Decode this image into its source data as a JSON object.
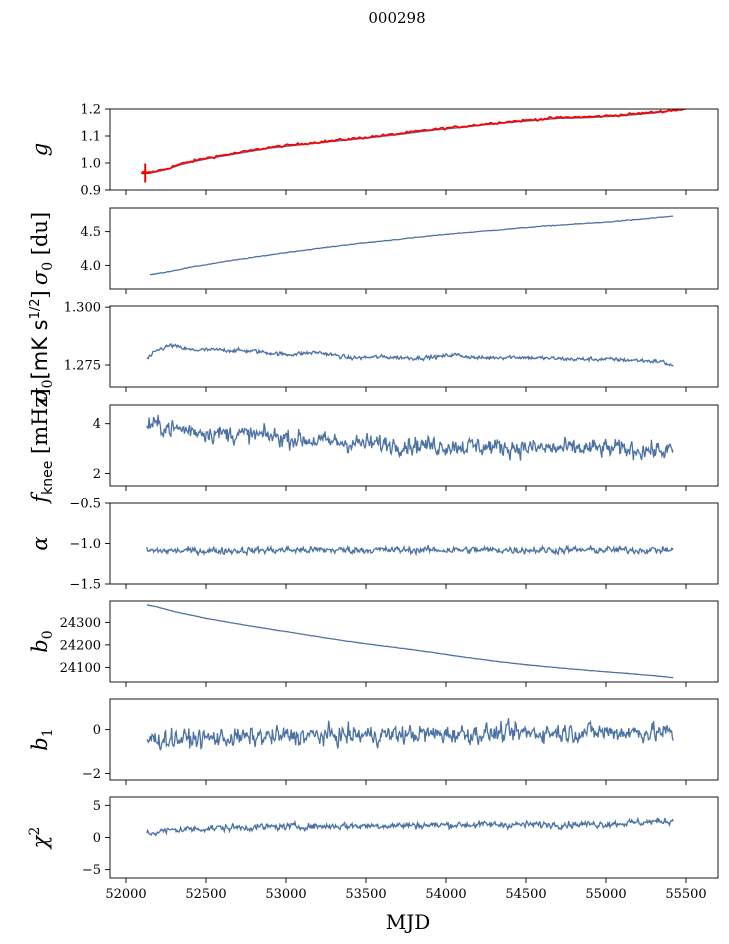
{
  "figure": {
    "title": "000298",
    "xlabel": "MJD"
  },
  "chart_data": [
    {
      "type": "line",
      "ylabel": "$g$",
      "ylim": [
        0.9,
        1.2
      ],
      "yticks": [
        "0.9",
        "1.0",
        "1.1",
        "1.2"
      ],
      "ytick_values": [
        0.9,
        1.0,
        1.1,
        1.2
      ],
      "xlim": [
        51900,
        55700
      ],
      "xticks": [
        "52000",
        "52500",
        "53000",
        "53500",
        "54000",
        "54500",
        "55000",
        "55500"
      ],
      "xtick_values": [
        52000,
        52500,
        53000,
        53500,
        54000,
        54500,
        55000,
        55500
      ],
      "show_xticklabels": false,
      "series": [
        {
          "color": "#4c72a4",
          "kind": "smooth",
          "noise": 0.0,
          "x": [
            52100,
            52150,
            52250,
            52350,
            52500,
            52700,
            52900,
            53100,
            53300,
            53500,
            53700,
            53900,
            54100,
            54300,
            54500,
            54700,
            54900,
            55100,
            55300,
            55450
          ],
          "y": [
            0.96,
            0.962,
            0.975,
            0.995,
            1.015,
            1.035,
            1.055,
            1.068,
            1.08,
            1.092,
            1.105,
            1.12,
            1.132,
            1.145,
            1.155,
            1.165,
            1.168,
            1.175,
            1.185,
            1.198
          ]
        },
        {
          "color": "#ff0000",
          "kind": "smooth",
          "noise": 0.003,
          "x": [
            52100,
            52150,
            52250,
            52350,
            52500,
            52700,
            52900,
            53100,
            53300,
            53500,
            53700,
            53900,
            54100,
            54300,
            54500,
            54700,
            54900,
            55100,
            55300,
            55500
          ],
          "y": [
            0.965,
            0.965,
            0.978,
            0.998,
            1.018,
            1.038,
            1.058,
            1.071,
            1.083,
            1.095,
            1.108,
            1.123,
            1.135,
            1.148,
            1.158,
            1.168,
            1.171,
            1.178,
            1.188,
            1.2
          ]
        },
        {
          "color": "#ff0000",
          "kind": "errorbar",
          "x": [
            52120
          ],
          "y": [
            0.963
          ],
          "err": [
            0.035
          ]
        }
      ]
    },
    {
      "type": "line",
      "ylabel": "$\\sigma_0$ [du]",
      "ylim": [
        3.65,
        4.85
      ],
      "yticks": [
        "4.0",
        "4.5"
      ],
      "ytick_values": [
        4.0,
        4.5
      ],
      "xlim": [
        51900,
        55700
      ],
      "xtick_values": [
        52000,
        52500,
        53000,
        53500,
        54000,
        54500,
        55000,
        55500
      ],
      "show_xticklabels": false,
      "series": [
        {
          "color": "#4c72a4",
          "kind": "smooth",
          "noise": 0.004,
          "x": [
            52150,
            52250,
            52400,
            52600,
            52800,
            53000,
            53200,
            53400,
            53600,
            53800,
            54000,
            54200,
            54400,
            54600,
            54800,
            55000,
            55200,
            55420
          ],
          "y": [
            3.86,
            3.9,
            3.97,
            4.05,
            4.12,
            4.19,
            4.25,
            4.31,
            4.36,
            4.41,
            4.46,
            4.5,
            4.54,
            4.58,
            4.61,
            4.64,
            4.68,
            4.73
          ]
        }
      ]
    },
    {
      "type": "line",
      "ylabel": "$\\sigma_0$[mK s$^{1/2}$]",
      "ylim": [
        1.2655,
        1.3005
      ],
      "yticks": [
        "1.275",
        "1.300"
      ],
      "ytick_values": [
        1.275,
        1.3
      ],
      "xlim": [
        51900,
        55700
      ],
      "xtick_values": [
        52000,
        52500,
        53000,
        53500,
        54000,
        54500,
        55000,
        55500
      ],
      "show_xticklabels": false,
      "series": [
        {
          "color": "#4c72a4",
          "kind": "noisy",
          "noise": 0.0009,
          "x": [
            52130,
            52200,
            52280,
            52400,
            52600,
            52800,
            53000,
            53200,
            53400,
            53600,
            53800,
            53950,
            54050,
            54200,
            54400,
            54600,
            54800,
            55000,
            55200,
            55350,
            55420
          ],
          "y": [
            1.2775,
            1.2815,
            1.2835,
            1.2815,
            1.2815,
            1.281,
            1.2795,
            1.2805,
            1.278,
            1.2785,
            1.278,
            1.2785,
            1.2795,
            1.278,
            1.2785,
            1.278,
            1.2775,
            1.2775,
            1.277,
            1.2765,
            1.2745
          ]
        }
      ]
    },
    {
      "type": "line",
      "ylabel": "$f_{\\mathrm{knee}}$ [mHz]",
      "ylim": [
        1.5,
        4.75
      ],
      "yticks": [
        "2",
        "4"
      ],
      "ytick_values": [
        2,
        4
      ],
      "xlim": [
        51900,
        55700
      ],
      "xtick_values": [
        52000,
        52500,
        53000,
        53500,
        54000,
        54500,
        55000,
        55500
      ],
      "show_xticklabels": false,
      "series": [
        {
          "color": "#4c72a4",
          "kind": "noisy",
          "noise": 0.38,
          "x": [
            52130,
            52300,
            52600,
            52900,
            53200,
            53500,
            53800,
            54100,
            54400,
            54700,
            55000,
            55420
          ],
          "y": [
            4.0,
            3.8,
            3.6,
            3.5,
            3.3,
            3.2,
            3.15,
            3.1,
            3.05,
            3.0,
            3.0,
            2.9
          ]
        }
      ]
    },
    {
      "type": "line",
      "ylabel": "$\\alpha$",
      "ylim": [
        -1.5,
        -0.5
      ],
      "yticks": [
        "−1.5",
        "−1.0",
        "−0.5"
      ],
      "ytick_values": [
        -1.5,
        -1.0,
        -0.5
      ],
      "xlim": [
        51900,
        55700
      ],
      "xtick_values": [
        52000,
        52500,
        53000,
        53500,
        54000,
        54500,
        55000,
        55500
      ],
      "show_xticklabels": false,
      "series": [
        {
          "color": "#4c72a4",
          "kind": "noisy",
          "noise": 0.045,
          "x": [
            52130,
            52500,
            53000,
            53500,
            54000,
            54500,
            55000,
            55420
          ],
          "y": [
            -1.09,
            -1.09,
            -1.08,
            -1.08,
            -1.08,
            -1.08,
            -1.08,
            -1.08
          ]
        }
      ]
    },
    {
      "type": "line",
      "ylabel": "$b_0$",
      "ylim": [
        24035,
        24395
      ],
      "yticks": [
        "24100",
        "24200",
        "24300"
      ],
      "ytick_values": [
        24100,
        24200,
        24300
      ],
      "xlim": [
        51900,
        55700
      ],
      "xtick_values": [
        52000,
        52500,
        53000,
        53500,
        54000,
        54500,
        55000,
        55500
      ],
      "show_xticklabels": false,
      "series": [
        {
          "color": "#4c72a4",
          "kind": "smooth",
          "noise": 0.6,
          "x": [
            52130,
            52200,
            52300,
            52500,
            52700,
            52900,
            53100,
            53300,
            53500,
            53700,
            53900,
            54100,
            54300,
            54500,
            54700,
            54900,
            55100,
            55300,
            55420
          ],
          "y": [
            24378,
            24368,
            24348,
            24318,
            24293,
            24270,
            24248,
            24225,
            24205,
            24187,
            24168,
            24147,
            24128,
            24112,
            24098,
            24086,
            24075,
            24063,
            24054
          ]
        }
      ]
    },
    {
      "type": "line",
      "ylabel": "$b_1$",
      "ylim": [
        -2.3,
        1.4
      ],
      "yticks": [
        "−2",
        "0"
      ],
      "ytick_values": [
        -2,
        0
      ],
      "xlim": [
        51900,
        55700
      ],
      "xtick_values": [
        52000,
        52500,
        53000,
        53500,
        54000,
        54500,
        55000,
        55500
      ],
      "show_xticklabels": false,
      "series": [
        {
          "color": "#4c72a4",
          "kind": "noisy",
          "noise": 0.45,
          "x": [
            52130,
            52500,
            53000,
            53500,
            54000,
            54500,
            55000,
            55420
          ],
          "y": [
            -0.45,
            -0.4,
            -0.3,
            -0.25,
            -0.2,
            -0.15,
            -0.1,
            -0.15
          ]
        }
      ]
    },
    {
      "type": "line",
      "ylabel": "$\\chi^2$",
      "ylim": [
        -6.3,
        6.3
      ],
      "yticks": [
        "−5",
        "0",
        "5"
      ],
      "ytick_values": [
        -5,
        0,
        5
      ],
      "xlim": [
        51900,
        55700
      ],
      "xticks": [
        "52000",
        "52500",
        "53000",
        "53500",
        "54000",
        "54500",
        "55000",
        "55500"
      ],
      "xtick_values": [
        52000,
        52500,
        53000,
        53500,
        54000,
        54500,
        55000,
        55500
      ],
      "show_xticklabels": true,
      "series": [
        {
          "color": "#4c72a4",
          "kind": "noisy",
          "noise": 0.55,
          "x": [
            52130,
            52300,
            52600,
            53000,
            53400,
            53800,
            54200,
            54600,
            55000,
            55420
          ],
          "y": [
            0.6,
            1.2,
            1.5,
            1.7,
            1.8,
            1.9,
            2.0,
            2.0,
            2.1,
            2.6
          ]
        }
      ]
    }
  ]
}
